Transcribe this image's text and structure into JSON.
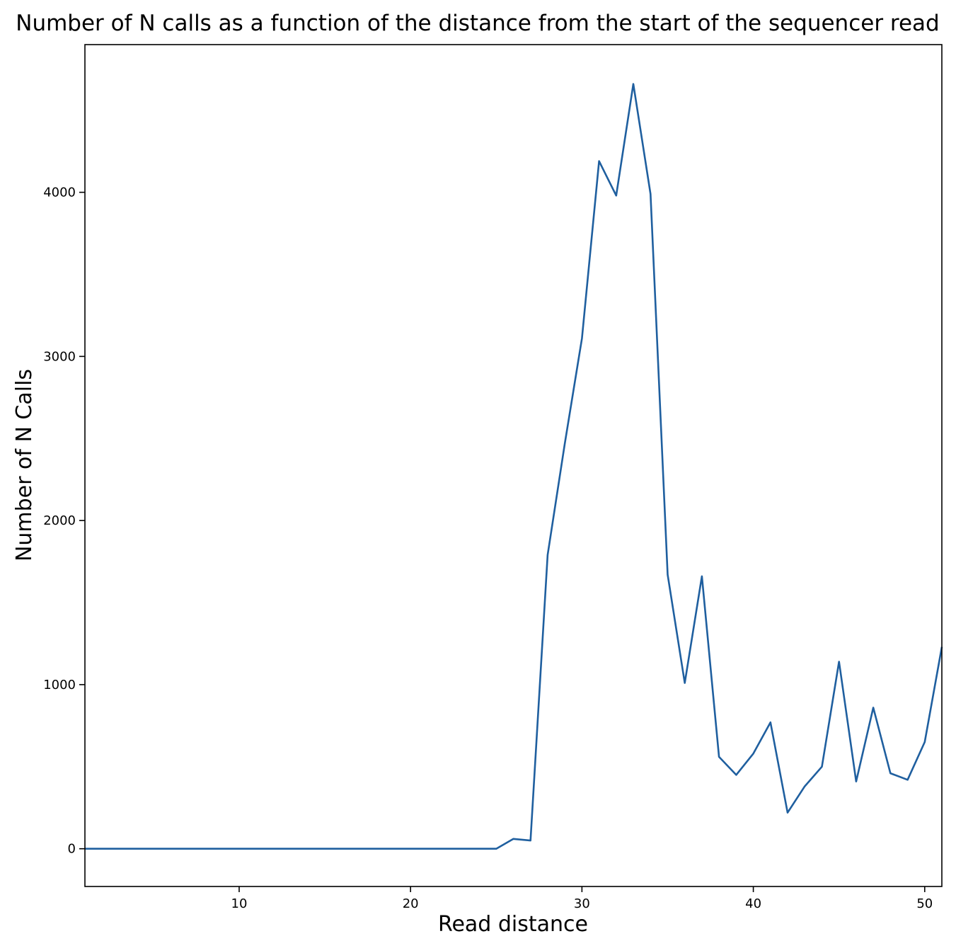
{
  "chart_data": {
    "type": "line",
    "title": "Number of N calls as a function of the distance from the start of the sequencer read",
    "xlabel": "Read distance",
    "ylabel": "Number of N Calls",
    "xlim": [
      1,
      51
    ],
    "ylim": [
      -230,
      4900
    ],
    "xticks": [
      10,
      20,
      30,
      40,
      50
    ],
    "yticks": [
      0,
      1000,
      2000,
      3000,
      4000
    ],
    "grid": false,
    "series": [
      {
        "color": "#1f5f9f",
        "x": [
          1,
          2,
          3,
          4,
          5,
          6,
          7,
          8,
          9,
          10,
          11,
          12,
          13,
          14,
          15,
          16,
          17,
          18,
          19,
          20,
          21,
          22,
          23,
          24,
          25,
          26,
          27,
          28,
          29,
          30,
          31,
          32,
          33,
          34,
          35,
          36,
          37,
          38,
          39,
          40,
          41,
          42,
          43,
          44,
          45,
          46,
          47,
          48,
          49,
          50,
          51
        ],
        "y": [
          0,
          0,
          0,
          0,
          0,
          0,
          0,
          0,
          0,
          0,
          0,
          0,
          0,
          0,
          0,
          0,
          0,
          0,
          0,
          0,
          0,
          0,
          0,
          0,
          0,
          60,
          50,
          1790,
          2470,
          3110,
          4190,
          3980,
          4660,
          3990,
          1670,
          1010,
          1660,
          560,
          450,
          580,
          770,
          220,
          380,
          500,
          1140,
          410,
          860,
          460,
          420,
          650,
          1230
        ]
      }
    ]
  }
}
